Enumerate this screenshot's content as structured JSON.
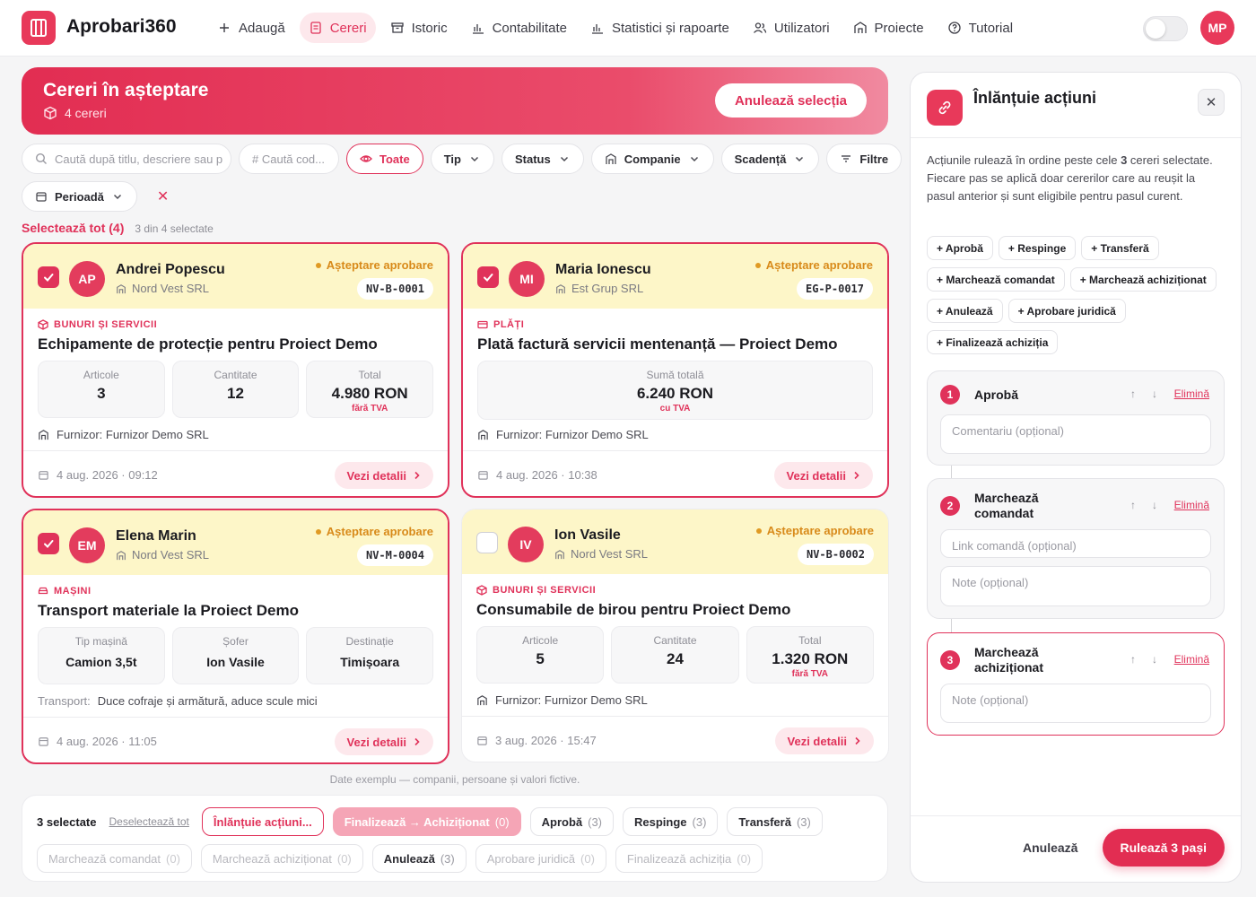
{
  "app": {
    "name": "Aprobari360",
    "user_initials": "MP"
  },
  "nav": [
    {
      "label": "Adaugă",
      "icon": "plus-icon"
    },
    {
      "label": "Cereri",
      "icon": "document-icon",
      "active": true
    },
    {
      "label": "Istoric",
      "icon": "archive-icon"
    },
    {
      "label": "Contabilitate",
      "icon": "chart-icon"
    },
    {
      "label": "Statistici și rapoarte",
      "icon": "chart-icon"
    },
    {
      "label": "Utilizatori",
      "icon": "users-icon"
    },
    {
      "label": "Proiecte",
      "icon": "building-icon"
    },
    {
      "label": "Tutorial",
      "icon": "help-icon"
    }
  ],
  "hero": {
    "title": "Cereri în așteptare",
    "count": "4 cereri",
    "cancel_label": "Anulează selecția"
  },
  "filters": {
    "search_placeholder": "Caută după titlu, descriere sau p",
    "code_placeholder": "# Caută cod...",
    "all": "Toate",
    "type": "Tip",
    "status": "Status",
    "company": "Companie",
    "due": "Scadență",
    "more": "Filtre",
    "period": "Perioadă",
    "clear": "✕"
  },
  "selection": {
    "select_all": "Selectează tot (4)",
    "count": "3 din 4 selectate"
  },
  "cards": [
    {
      "initials": "AP",
      "name": "Andrei Popescu",
      "company": "Nord Vest SRL",
      "status": "Așteptare aprobare",
      "code": "NV-B-0001",
      "category": "BUNURI ȘI SERVICII",
      "title": "Echipamente de protecție pentru Proiect Demo",
      "stats": [
        {
          "label": "Articole",
          "value": "3",
          "sub": ""
        },
        {
          "label": "Cantitate",
          "value": "12",
          "sub": ""
        },
        {
          "label": "Total",
          "value": "4.980 RON",
          "sub": "fără TVA"
        }
      ],
      "info_label": "",
      "info": "Furnizor: Furnizor Demo SRL",
      "date": "4 aug. 2026 · 09:12",
      "details": "Vezi detalii",
      "selected": true
    },
    {
      "initials": "MI",
      "name": "Maria Ionescu",
      "company": "Est Grup SRL",
      "status": "Așteptare aprobare",
      "code": "EG-P-0017",
      "category": "PLĂȚI",
      "title": "Plată factură servicii mentenanță — Proiect Demo",
      "stats": [
        {
          "label": "Sumă totală",
          "value": "6.240 RON",
          "sub": "cu TVA"
        }
      ],
      "info_label": "",
      "info": "Furnizor: Furnizor Demo SRL",
      "date": "4 aug. 2026 · 10:38",
      "details": "Vezi detalii",
      "selected": true
    },
    {
      "initials": "EM",
      "name": "Elena Marin",
      "company": "Nord Vest SRL",
      "status": "Așteptare aprobare",
      "code": "NV-M-0004",
      "category": "MAȘINI",
      "title": "Transport materiale la Proiect Demo",
      "stats": [
        {
          "label": "Tip mașină",
          "value": "Camion 3,5t",
          "sub": ""
        },
        {
          "label": "Șofer",
          "value": "Ion Vasile",
          "sub": ""
        },
        {
          "label": "Destinație",
          "value": "Timișoara",
          "sub": ""
        }
      ],
      "info_label": "Transport:",
      "info": "Duce cofraje și armătură, aduce scule mici",
      "date": "4 aug. 2026 · 11:05",
      "details": "Vezi detalii",
      "selected": true
    },
    {
      "initials": "IV",
      "name": "Ion Vasile",
      "company": "Nord Vest SRL",
      "status": "Așteptare aprobare",
      "code": "NV-B-0002",
      "category": "BUNURI ȘI SERVICII",
      "title": "Consumabile de birou pentru Proiect Demo",
      "stats": [
        {
          "label": "Articole",
          "value": "5",
          "sub": ""
        },
        {
          "label": "Cantitate",
          "value": "24",
          "sub": ""
        },
        {
          "label": "Total",
          "value": "1.320 RON",
          "sub": "fără TVA"
        }
      ],
      "info_label": "",
      "info": "Furnizor: Furnizor Demo SRL",
      "date": "3 aug. 2026 · 15:47",
      "details": "Vezi detalii",
      "selected": false
    }
  ],
  "footer_note": "Date exemplu — companii, persoane și valori fictive.",
  "bulk": {
    "selected": "3 selectate",
    "deselect": "Deselectează tot",
    "row1": [
      {
        "label": "Înlănțuie acțiuni...",
        "count": "",
        "style": "outline-red"
      },
      {
        "label": "Finalizează → Achiziționat",
        "count": "(0)",
        "style": "filled-pink"
      },
      {
        "label": "Aprobă",
        "count": "(3)",
        "style": ""
      },
      {
        "label": "Respinge",
        "count": "(3)",
        "style": ""
      },
      {
        "label": "Transferă",
        "count": "(3)",
        "style": ""
      }
    ],
    "row2": [
      {
        "label": "Marchează comandat",
        "count": "(0)",
        "style": "dis"
      },
      {
        "label": "Marchează achiziționat",
        "count": "(0)",
        "style": "dis"
      },
      {
        "label": "Anulează",
        "count": "(3)",
        "style": ""
      },
      {
        "label": "Aprobare juridică",
        "count": "(0)",
        "style": "dis"
      },
      {
        "label": "Finalizează achiziția",
        "count": "(0)",
        "style": "dis"
      }
    ]
  },
  "panel": {
    "title": "Înlănțuie acțiuni",
    "desc_before": "Acțiunile rulează în ordine peste cele ",
    "desc_count": "3",
    "desc_after": " cereri selectate. Fiecare pas se aplică doar cererilor care au reușit la pasul anterior și sunt eligibile pentru pasul curent.",
    "chips": [
      "+ Aprobă",
      "+ Respinge",
      "+ Transferă",
      "+ Marchează comandat",
      "+ Marchează achiziționat",
      "+ Anulează",
      "+ Aprobare juridică",
      "+ Finalizează achiziția"
    ],
    "steps": [
      {
        "num": "1",
        "name": "Aprobă",
        "inputs": [
          "Comentariu (opțional)"
        ]
      },
      {
        "num": "2",
        "name": "Marchează comandat",
        "inputs": [
          "Link comandă (opțional)",
          "Note (opțional)"
        ]
      },
      {
        "num": "3",
        "name": "Marchează achiziționat",
        "inputs": [
          "Note (opțional)"
        ]
      }
    ],
    "delete_label": "Elimină",
    "cancel": "Anulează",
    "run": "Rulează 3 pași"
  }
}
